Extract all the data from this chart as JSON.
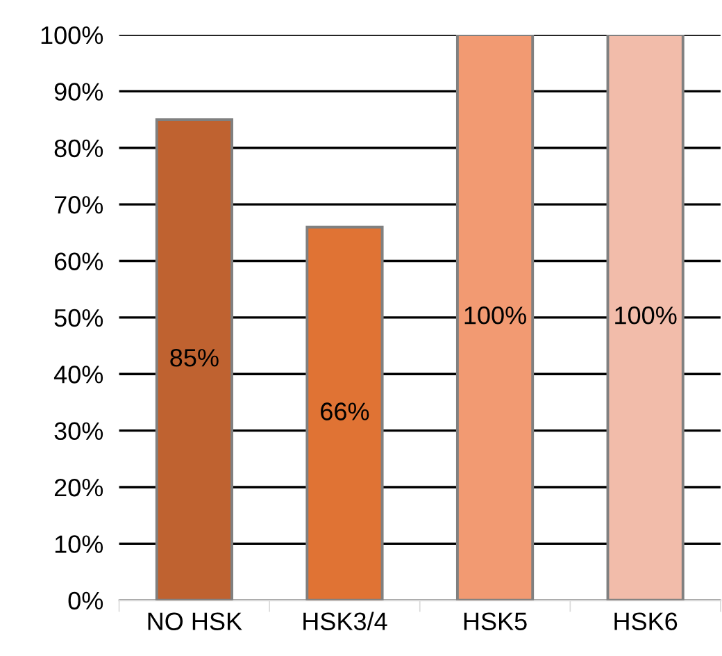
{
  "chart_data": {
    "type": "bar",
    "categories": [
      "NO HSK",
      "HSK3/4",
      "HSK5",
      "HSK6"
    ],
    "values": [
      85,
      66,
      100,
      100
    ],
    "colors": [
      "#bf6230",
      "#e07334",
      "#f29a72",
      "#f2bcaa"
    ],
    "value_labels": [
      "85%",
      "66%",
      "100%",
      "100%"
    ],
    "ylim": [
      0,
      100
    ],
    "yticks": [
      {
        "value": 0,
        "label": "0%"
      },
      {
        "value": 10,
        "label": "10%"
      },
      {
        "value": 20,
        "label": "20%"
      },
      {
        "value": 30,
        "label": "30%"
      },
      {
        "value": 40,
        "label": "40%"
      },
      {
        "value": 50,
        "label": "50%"
      },
      {
        "value": 60,
        "label": "60%"
      },
      {
        "value": 70,
        "label": "70%"
      },
      {
        "value": 80,
        "label": "80%"
      },
      {
        "value": 90,
        "label": "90%"
      },
      {
        "value": 100,
        "label": "100%"
      }
    ],
    "grid": "y"
  }
}
